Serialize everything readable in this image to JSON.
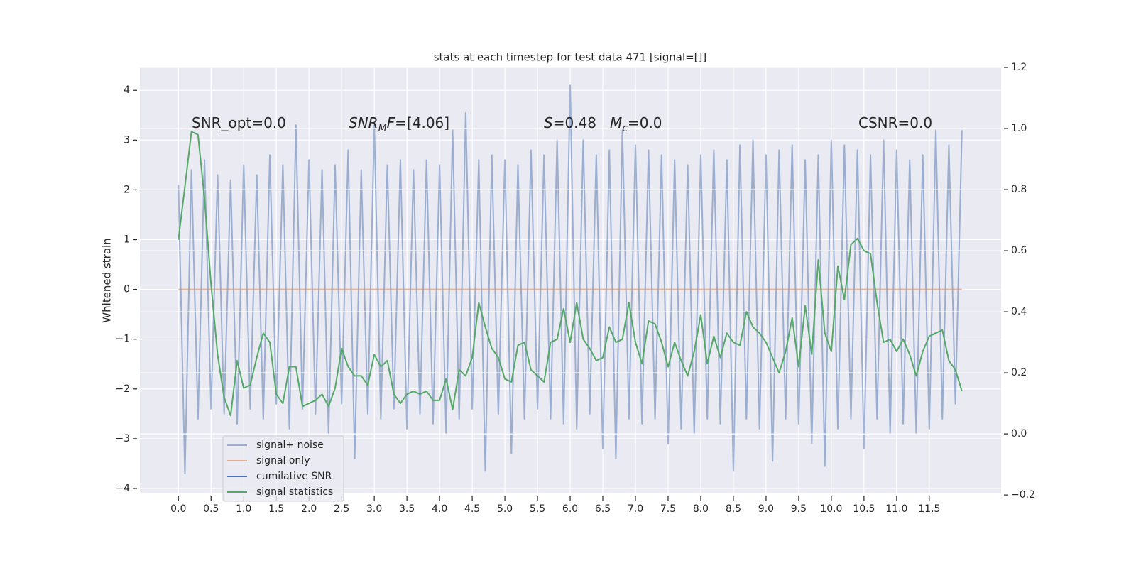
{
  "chart_data": {
    "type": "line",
    "title": "stats at each timestep for test data 471 [signal=[]]",
    "ylabel": "Whitened strain",
    "annotations": [
      {
        "parts": [
          {
            "text": "SNR_opt=0.0"
          }
        ]
      },
      {
        "parts": [
          {
            "text": "SNR",
            "italic": true
          },
          {
            "text": "M",
            "italic": true,
            "sub": true
          },
          {
            "text": "F",
            "italic": true
          },
          {
            "text": "=[4.06]"
          }
        ]
      },
      {
        "parts": [
          {
            "text": "S",
            "italic": true
          },
          {
            "text": "=0.48"
          }
        ]
      },
      {
        "parts": [
          {
            "text": "M",
            "italic": true
          },
          {
            "text": "c",
            "italic": true,
            "sub": true
          },
          {
            "text": "=0.0"
          }
        ]
      },
      {
        "parts": [
          {
            "text": "CSNR=0.0"
          }
        ]
      }
    ],
    "x": [
      0,
      0.1,
      0.2,
      0.3,
      0.4,
      0.5,
      0.6,
      0.7,
      0.8,
      0.9,
      1,
      1.1,
      1.2,
      1.3,
      1.4,
      1.5,
      1.6,
      1.7,
      1.8,
      1.9,
      2,
      2.1,
      2.2,
      2.3,
      2.4,
      2.5,
      2.6,
      2.7,
      2.8,
      2.9,
      3,
      3.1,
      3.2,
      3.3,
      3.4,
      3.5,
      3.6,
      3.7,
      3.8,
      3.9,
      4,
      4.1,
      4.2,
      4.3,
      4.4,
      4.5,
      4.6,
      4.7,
      4.8,
      4.9,
      5,
      5.1,
      5.2,
      5.3,
      5.4,
      5.5,
      5.6,
      5.7,
      5.8,
      5.9,
      6,
      6.1,
      6.2,
      6.3,
      6.4,
      6.5,
      6.6,
      6.7,
      6.8,
      6.9,
      7,
      7.1,
      7.2,
      7.3,
      7.4,
      7.5,
      7.6,
      7.7,
      7.8,
      7.9,
      8,
      8.1,
      8.2,
      8.3,
      8.4,
      8.5,
      8.6,
      8.7,
      8.8,
      8.9,
      9,
      9.1,
      9.2,
      9.3,
      9.4,
      9.5,
      9.6,
      9.7,
      9.8,
      9.9,
      10,
      10.1,
      10.2,
      10.3,
      10.4,
      10.5,
      10.6,
      10.7,
      10.8,
      10.9,
      11,
      11.1,
      11.2,
      11.3,
      11.4,
      11.5,
      11.6,
      11.7,
      11.8,
      11.9,
      12
    ],
    "series": [
      {
        "name": "signal+ noise",
        "color": "#4c72b0",
        "opacity": 0.5,
        "values": [
          2.1,
          -3.7,
          2.4,
          -2.6,
          2.6,
          -2.4,
          2.3,
          -2.5,
          2.2,
          -2.7,
          2.5,
          -2.4,
          2.3,
          -2.6,
          2.7,
          -2.3,
          2.5,
          -2.8,
          3.3,
          -2.4,
          2.6,
          -2.5,
          2.4,
          -2.9,
          2.5,
          -2.3,
          2.8,
          -3.4,
          2.4,
          -2.5,
          3.3,
          -2.6,
          2.5,
          -2.4,
          2.6,
          -2.8,
          2.4,
          -2.5,
          2.6,
          -2.7,
          2.5,
          -2.9,
          3.2,
          -2.6,
          3.55,
          -2.4,
          2.6,
          -3.65,
          2.7,
          -2.5,
          2.6,
          -3.3,
          2.5,
          -2.6,
          2.8,
          -2.4,
          2.7,
          -2.6,
          3.0,
          -2.7,
          4.1,
          -2.8,
          3.0,
          -2.5,
          2.7,
          -3.2,
          2.8,
          -3.4,
          3.2,
          -2.6,
          2.9,
          -2.7,
          2.8,
          -2.6,
          2.7,
          -3.1,
          2.6,
          -2.8,
          2.5,
          -2.9,
          2.7,
          -2.6,
          2.8,
          -2.7,
          2.6,
          -3.65,
          2.9,
          -2.6,
          3.0,
          -2.8,
          2.7,
          -3.45,
          2.8,
          -2.6,
          2.9,
          -2.7,
          2.6,
          -3.1,
          2.7,
          -3.55,
          3.0,
          -2.8,
          2.9,
          -2.6,
          2.8,
          -3.2,
          2.7,
          -2.6,
          3.0,
          -2.9,
          2.8,
          -2.7,
          2.6,
          -2.9,
          2.7,
          -2.8,
          3.2,
          -2.6,
          2.9,
          -2.3,
          3.2
        ]
      },
      {
        "name": "signal only",
        "color": "#dd8452",
        "opacity": 0.6,
        "values": [
          0,
          0,
          0,
          0,
          0,
          0,
          0,
          0,
          0,
          0,
          0,
          0,
          0,
          0,
          0,
          0,
          0,
          0,
          0,
          0,
          0,
          0,
          0,
          0,
          0,
          0,
          0,
          0,
          0,
          0,
          0,
          0,
          0,
          0,
          0,
          0,
          0,
          0,
          0,
          0,
          0,
          0,
          0,
          0,
          0,
          0,
          0,
          0,
          0,
          0,
          0,
          0,
          0,
          0,
          0,
          0,
          0,
          0,
          0,
          0,
          0,
          0,
          0,
          0,
          0,
          0,
          0,
          0,
          0,
          0,
          0,
          0,
          0,
          0,
          0,
          0,
          0,
          0,
          0,
          0,
          0,
          0,
          0,
          0,
          0,
          0,
          0,
          0,
          0,
          0,
          0,
          0,
          0,
          0,
          0,
          0,
          0,
          0,
          0,
          0,
          0,
          0,
          0,
          0,
          0,
          0,
          0,
          0,
          0,
          0,
          0,
          0,
          0,
          0,
          0,
          0,
          0,
          0,
          0,
          0,
          0
        ]
      },
      {
        "name": "cumilative SNR",
        "color": "#4c72b0",
        "axis": "y2",
        "values": [
          null,
          null,
          null,
          null,
          null,
          null,
          null,
          null,
          null,
          null,
          null,
          null,
          null,
          null,
          null,
          null,
          null,
          null,
          null,
          null,
          null,
          null,
          null,
          null,
          null,
          null,
          null,
          null,
          null,
          null,
          null,
          null,
          null,
          null,
          null,
          null,
          null,
          null,
          null,
          null,
          null,
          null,
          null,
          null,
          null,
          null,
          null,
          null,
          null,
          null,
          null,
          null,
          null,
          null,
          null,
          null,
          null,
          null,
          null,
          null,
          null,
          null,
          null,
          null,
          null,
          null,
          null,
          null,
          null,
          null,
          null,
          null,
          null,
          null,
          null,
          null,
          null,
          null,
          null,
          null,
          null,
          null,
          null,
          null,
          null,
          null,
          null,
          null,
          null,
          null,
          null,
          null,
          null,
          null,
          null,
          null,
          null,
          null,
          null,
          null,
          null,
          null,
          null,
          null,
          null,
          null,
          null,
          null,
          null,
          null,
          null,
          null,
          null,
          null,
          null,
          null,
          null,
          null,
          null,
          null,
          null
        ]
      },
      {
        "name": "signal statistics",
        "color": "#55a868",
        "axis": "y2",
        "values": [
          0.636,
          0.81,
          0.99,
          0.98,
          0.77,
          0.49,
          0.26,
          0.12,
          0.06,
          0.24,
          0.15,
          0.16,
          0.25,
          0.33,
          0.3,
          0.13,
          0.1,
          0.22,
          0.22,
          0.09,
          0.1,
          0.11,
          0.13,
          0.09,
          0.15,
          0.28,
          0.22,
          0.19,
          0.19,
          0.16,
          0.26,
          0.22,
          0.24,
          0.13,
          0.1,
          0.13,
          0.14,
          0.13,
          0.14,
          0.11,
          0.11,
          0.18,
          0.08,
          0.21,
          0.19,
          0.25,
          0.43,
          0.35,
          0.28,
          0.25,
          0.18,
          0.17,
          0.29,
          0.3,
          0.21,
          0.19,
          0.17,
          0.3,
          0.31,
          0.41,
          0.3,
          0.43,
          0.31,
          0.28,
          0.24,
          0.25,
          0.35,
          0.3,
          0.31,
          0.43,
          0.3,
          0.23,
          0.37,
          0.36,
          0.3,
          0.22,
          0.3,
          0.24,
          0.19,
          0.27,
          0.39,
          0.23,
          0.32,
          0.25,
          0.33,
          0.3,
          0.29,
          0.4,
          0.35,
          0.33,
          0.3,
          0.25,
          0.2,
          0.27,
          0.38,
          0.22,
          0.42,
          0.26,
          0.57,
          0.33,
          0.27,
          0.55,
          0.44,
          0.62,
          0.64,
          0.6,
          0.59,
          0.43,
          0.3,
          0.31,
          0.27,
          0.31,
          0.26,
          0.19,
          0.27,
          0.32,
          0.33,
          0.34,
          0.24,
          0.21,
          0.14
        ]
      }
    ],
    "xlim": [
      -0.59,
      12.6
    ],
    "ylim": [
      -4.1,
      4.46
    ],
    "y2lim": [
      -0.195,
      1.2
    ],
    "xticks": [
      {
        "value": 0,
        "label": "0.0"
      },
      0.5,
      {
        "value": 1,
        "label": "1.0"
      },
      1.5,
      {
        "value": 2,
        "label": "2.0"
      },
      2.5,
      {
        "value": 3,
        "label": "3.0"
      },
      3.5,
      {
        "value": 4,
        "label": "4.0"
      },
      4.5,
      {
        "value": 5,
        "label": "5.0"
      },
      5.5,
      {
        "value": 6,
        "label": "6.0"
      },
      6.5,
      {
        "value": 7,
        "label": "7.0"
      },
      7.5,
      {
        "value": 8,
        "label": "8.0"
      },
      8.5,
      {
        "value": 9,
        "label": "9.0"
      },
      9.5,
      {
        "value": 10,
        "label": "10.0"
      },
      10.5,
      {
        "value": 11,
        "label": "11.0"
      },
      11.5
    ],
    "yticks": [
      {
        "value": -4,
        "label": "−4"
      },
      {
        "value": -3,
        "label": "−3"
      },
      {
        "value": -2,
        "label": "−2"
      },
      {
        "value": -1,
        "label": "−1"
      },
      0,
      1,
      2,
      3,
      4
    ],
    "y2ticks": [
      {
        "value": -0.2,
        "label": "−0.2"
      },
      {
        "value": 0,
        "label": "0.0"
      },
      0.2,
      0.4,
      0.6,
      0.8,
      {
        "value": 1,
        "label": "1.0"
      },
      1.2
    ],
    "grid": true,
    "legend": "lower left"
  }
}
